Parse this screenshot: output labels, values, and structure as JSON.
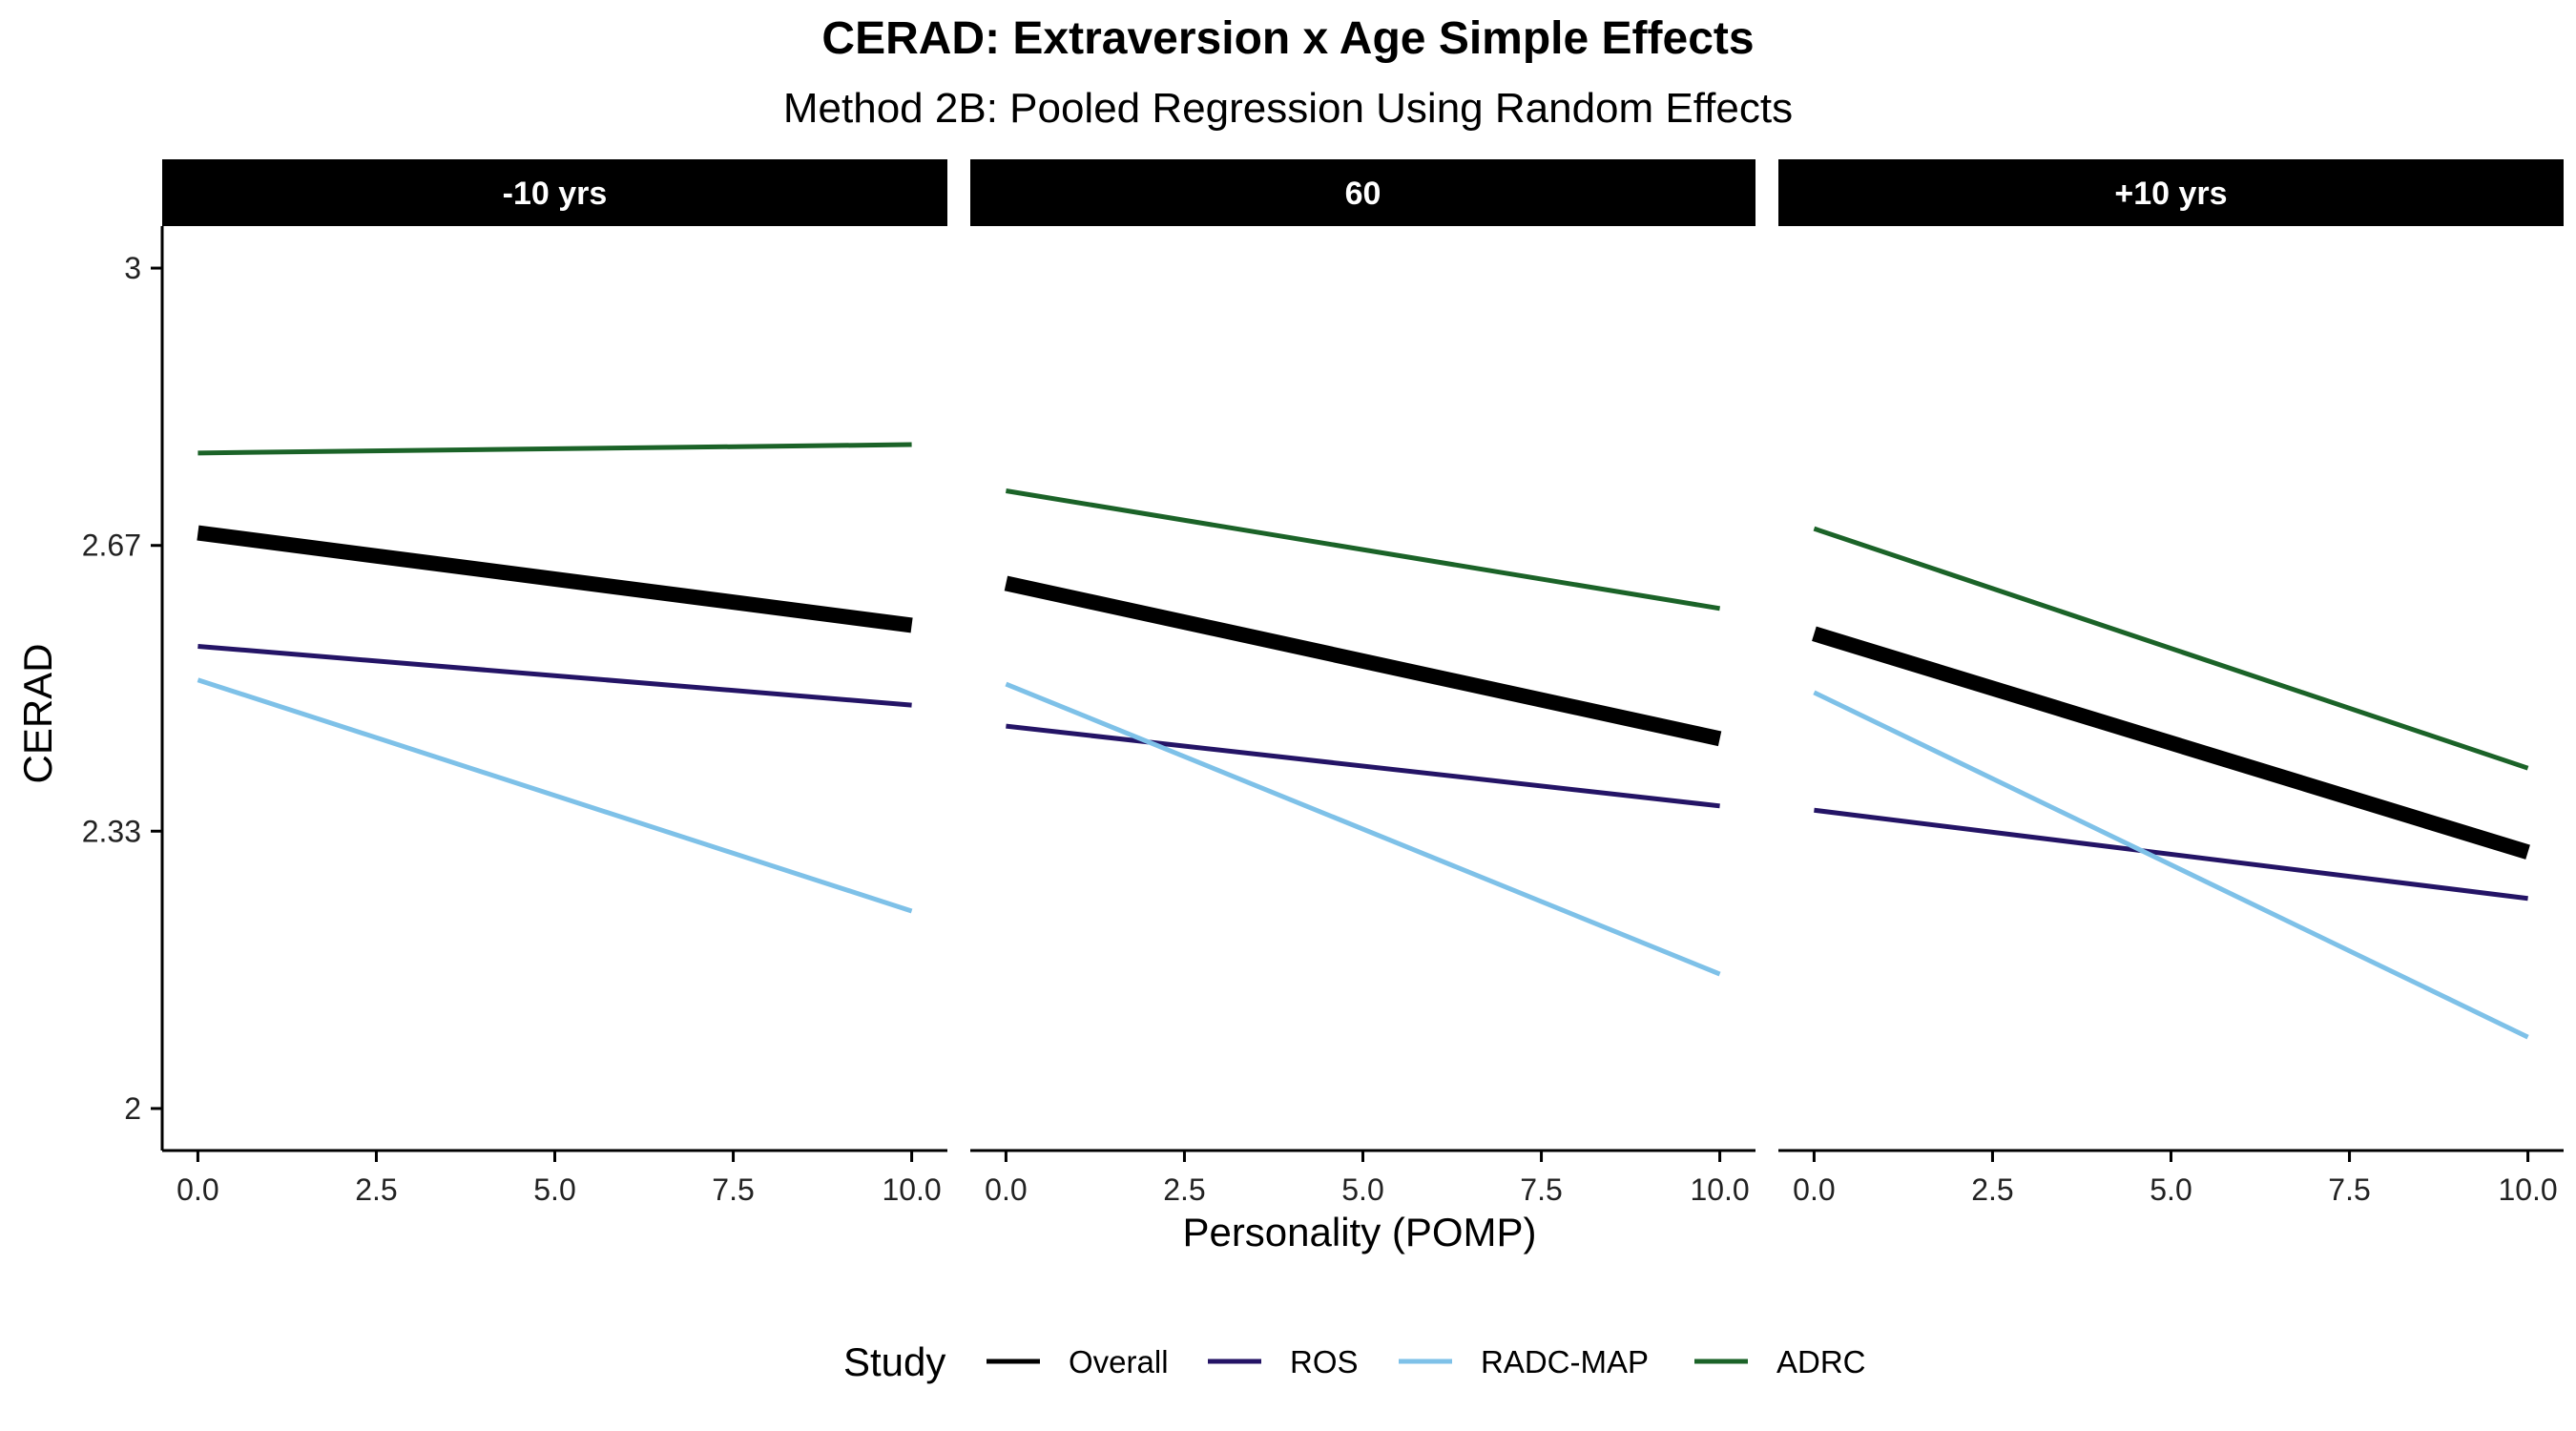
{
  "chart_data": {
    "type": "line",
    "title": "CERAD: Extraversion x Age Simple Effects",
    "subtitle": "Method 2B: Pooled Regression Using Random Effects",
    "xlabel": "Personality (POMP)",
    "ylabel": "CERAD",
    "xlim": [
      -0.5,
      10.5
    ],
    "ylim": [
      1.95,
      3.05
    ],
    "x_ticks": [
      0,
      2.5,
      5,
      7.5,
      10
    ],
    "x_tick_labels": [
      "0.0",
      "2.5",
      "5.0",
      "7.5",
      "10.0"
    ],
    "y_ticks": [
      2,
      2.33,
      2.67,
      3
    ],
    "y_tick_labels": [
      "2",
      "2.33",
      "2.67",
      "3"
    ],
    "grid": false,
    "legend": {
      "title": "Study",
      "position": "bottom",
      "entries": [
        "Overall",
        "ROS",
        "RADC-MAP",
        "ADRC"
      ]
    },
    "colors": {
      "Overall": "#000000",
      "ROS": "#241466",
      "RADC-MAP": "#7ec1e8",
      "ADRC": "#1b6328"
    },
    "panels": [
      {
        "label": "-10 yrs",
        "series": [
          {
            "name": "ADRC",
            "x": [
              0,
              10
            ],
            "y": [
              2.78,
              2.79
            ]
          },
          {
            "name": "Overall",
            "x": [
              0,
              10
            ],
            "y": [
              2.685,
              2.575
            ]
          },
          {
            "name": "ROS",
            "x": [
              0,
              10
            ],
            "y": [
              2.55,
              2.48
            ]
          },
          {
            "name": "RADC-MAP",
            "x": [
              0,
              10
            ],
            "y": [
              2.51,
              2.235
            ]
          }
        ]
      },
      {
        "label": "60",
        "series": [
          {
            "name": "ADRC",
            "x": [
              0,
              10
            ],
            "y": [
              2.735,
              2.595
            ]
          },
          {
            "name": "Overall",
            "x": [
              0,
              10
            ],
            "y": [
              2.625,
              2.44
            ]
          },
          {
            "name": "ROS",
            "x": [
              0,
              10
            ],
            "y": [
              2.455,
              2.36
            ]
          },
          {
            "name": "RADC-MAP",
            "x": [
              0,
              10
            ],
            "y": [
              2.505,
              2.16
            ]
          }
        ]
      },
      {
        "label": "+10 yrs",
        "series": [
          {
            "name": "ADRC",
            "x": [
              0,
              10
            ],
            "y": [
              2.69,
              2.405
            ]
          },
          {
            "name": "Overall",
            "x": [
              0,
              10
            ],
            "y": [
              2.565,
              2.305
            ]
          },
          {
            "name": "ROS",
            "x": [
              0,
              10
            ],
            "y": [
              2.355,
              2.25
            ]
          },
          {
            "name": "RADC-MAP",
            "x": [
              0,
              10
            ],
            "y": [
              2.495,
              2.085
            ]
          }
        ]
      }
    ]
  }
}
